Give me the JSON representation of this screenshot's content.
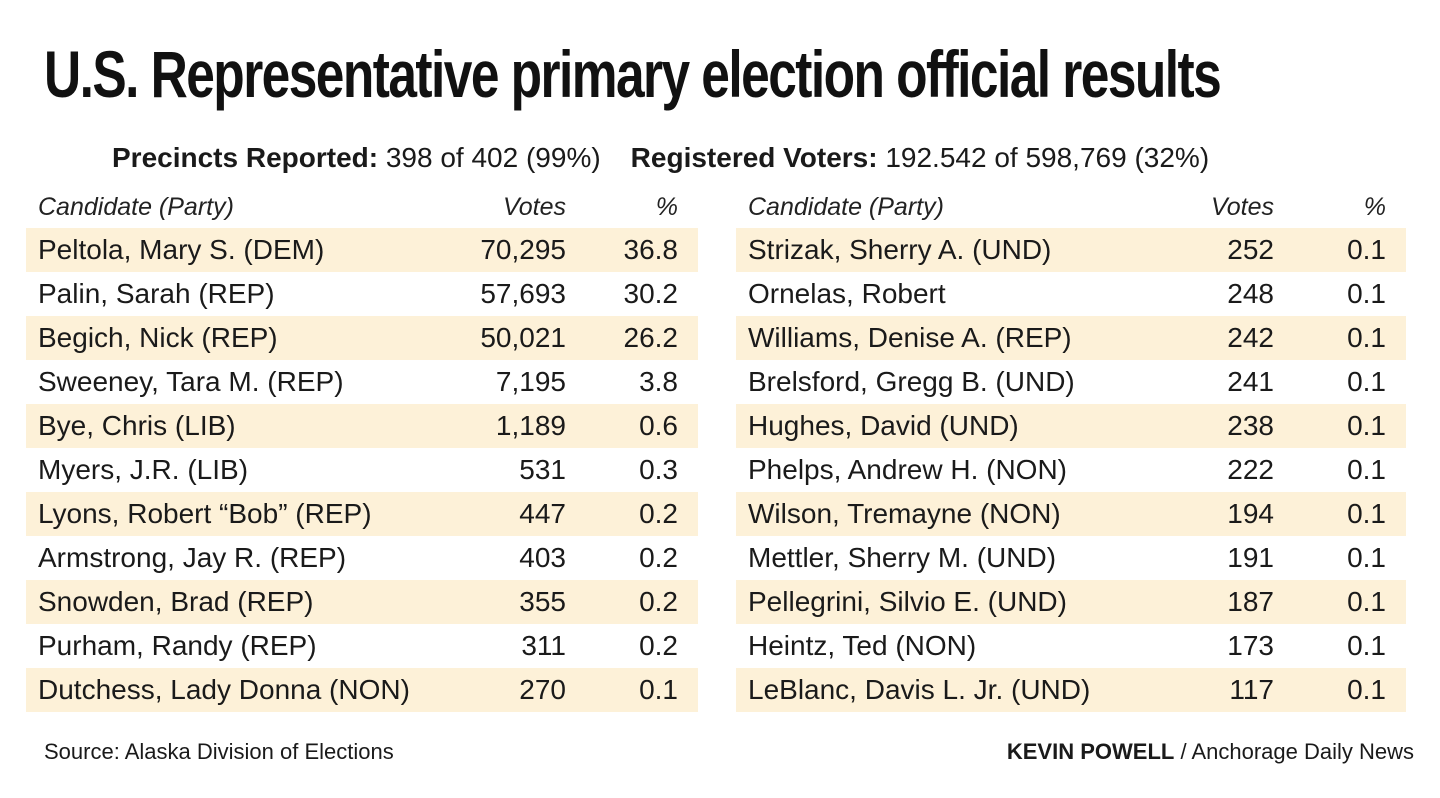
{
  "title": "U.S. Representative primary election official results",
  "stats": {
    "precincts_label": "Precincts Reported:",
    "precincts_value": "398 of 402 (99%)",
    "voters_label": "Registered Voters:",
    "voters_value": "192.542 of 598,769 (32%)"
  },
  "colors": {
    "row_shade": "#fdf1d8",
    "text": "#1a1a1a"
  },
  "chart_data": {
    "type": "table",
    "columns": [
      "Candidate (Party)",
      "Votes",
      "%"
    ],
    "left": [
      {
        "name": "Peltola, Mary S. (DEM)",
        "votes": "70,295",
        "pct": "36.8"
      },
      {
        "name": "Palin, Sarah (REP)",
        "votes": "57,693",
        "pct": "30.2"
      },
      {
        "name": "Begich, Nick (REP)",
        "votes": "50,021",
        "pct": "26.2"
      },
      {
        "name": "Sweeney, Tara M. (REP)",
        "votes": "7,195",
        "pct": "3.8"
      },
      {
        "name": "Bye, Chris (LIB)",
        "votes": "1,189",
        "pct": "0.6"
      },
      {
        "name": "Myers, J.R. (LIB)",
        "votes": "531",
        "pct": "0.3"
      },
      {
        "name": "Lyons, Robert “Bob” (REP)",
        "votes": "447",
        "pct": "0.2"
      },
      {
        "name": "Armstrong, Jay R. (REP)",
        "votes": "403",
        "pct": "0.2"
      },
      {
        "name": "Snowden, Brad (REP)",
        "votes": "355",
        "pct": "0.2"
      },
      {
        "name": "Purham, Randy (REP)",
        "votes": "311",
        "pct": "0.2"
      },
      {
        "name": "Dutchess, Lady Donna (NON)",
        "votes": "270",
        "pct": "0.1"
      }
    ],
    "right": [
      {
        "name": "Strizak, Sherry A. (UND)",
        "votes": "252",
        "pct": "0.1"
      },
      {
        "name": "Ornelas, Robert",
        "votes": "248",
        "pct": "0.1"
      },
      {
        "name": "Williams, Denise A. (REP)",
        "votes": "242",
        "pct": "0.1"
      },
      {
        "name": "Brelsford, Gregg B. (UND)",
        "votes": "241",
        "pct": "0.1"
      },
      {
        "name": "Hughes, David (UND)",
        "votes": "238",
        "pct": "0.1"
      },
      {
        "name": "Phelps, Andrew H. (NON)",
        "votes": "222",
        "pct": "0.1"
      },
      {
        "name": "Wilson, Tremayne (NON)",
        "votes": "194",
        "pct": "0.1"
      },
      {
        "name": "Mettler, Sherry M. (UND)",
        "votes": "191",
        "pct": "0.1"
      },
      {
        "name": "Pellegrini, Silvio E. (UND)",
        "votes": "187",
        "pct": "0.1"
      },
      {
        "name": "Heintz, Ted (NON)",
        "votes": "173",
        "pct": "0.1"
      },
      {
        "name": "LeBlanc, Davis L. Jr. (UND)",
        "votes": "117",
        "pct": "0.1"
      }
    ]
  },
  "footer": {
    "source": "Source: Alaska Division of Elections",
    "credit_name": "KEVIN POWELL",
    "credit_rest": " / Anchorage Daily News"
  }
}
